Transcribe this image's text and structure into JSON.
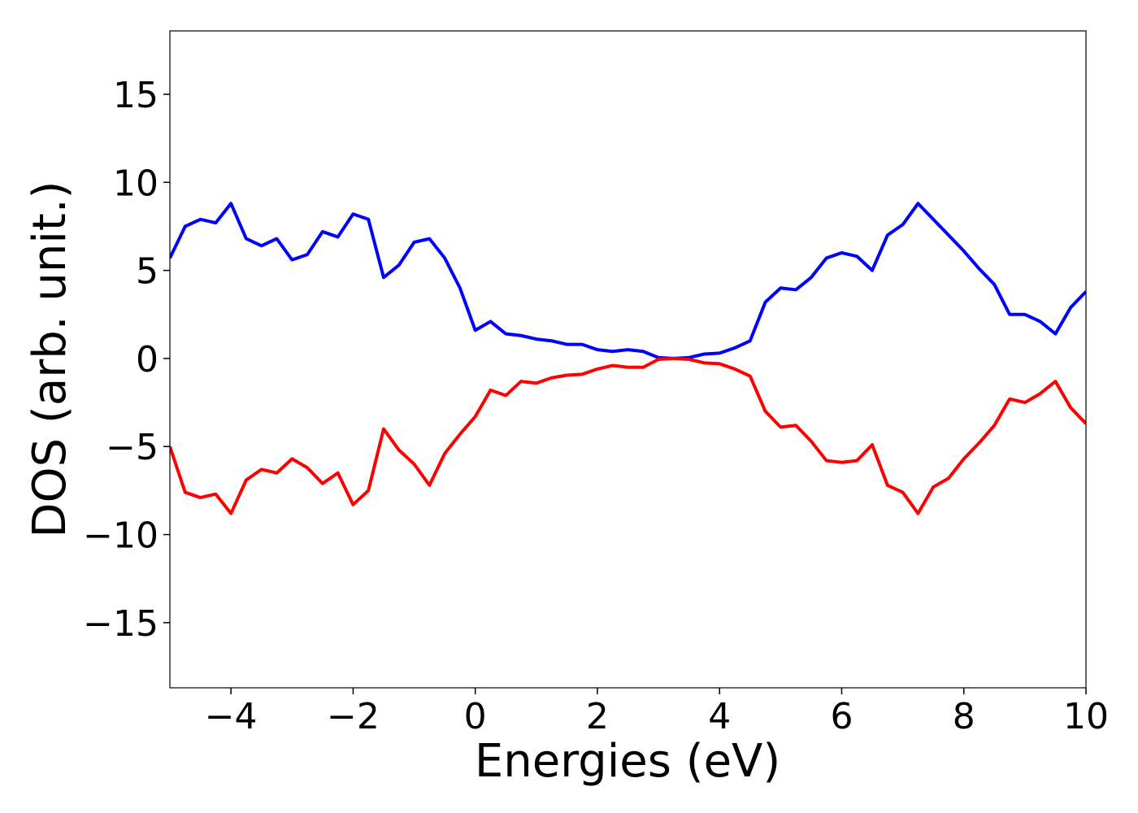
{
  "chart_data": {
    "type": "line",
    "xlabel": "Energies (eV)",
    "ylabel": "DOS (arb. unit.)",
    "x": [
      -5,
      -4.75,
      -4.5,
      -4.25,
      -4,
      -3.75,
      -3.5,
      -3.25,
      -3,
      -2.75,
      -2.5,
      -2.25,
      -2,
      -1.75,
      -1.5,
      -1.25,
      -1,
      -0.75,
      -0.5,
      -0.25,
      0,
      0.25,
      0.5,
      0.75,
      1,
      1.25,
      1.5,
      1.75,
      2,
      2.25,
      2.5,
      2.75,
      3,
      3.25,
      3.5,
      3.75,
      4,
      4.25,
      4.5,
      4.75,
      5,
      5.25,
      5.5,
      5.75,
      6,
      6.25,
      6.5,
      6.75,
      7,
      7.25,
      7.5,
      7.75,
      8,
      8.25,
      8.5,
      8.75,
      9,
      9.25,
      9.5,
      9.75,
      10
    ],
    "series": [
      {
        "color": "#0000ff",
        "values": [
          5.7,
          7.5,
          7.9,
          7.7,
          8.8,
          6.8,
          6.4,
          6.8,
          5.6,
          5.9,
          7.2,
          6.9,
          8.2,
          7.9,
          4.6,
          5.3,
          6.6,
          6.8,
          5.7,
          4.0,
          1.6,
          2.1,
          1.4,
          1.3,
          1.1,
          1.0,
          0.8,
          0.8,
          0.5,
          0.4,
          0.5,
          0.4,
          0.05,
          0,
          0.05,
          0.25,
          0.3,
          0.6,
          1.0,
          3.2,
          4.0,
          3.9,
          4.6,
          5.7,
          6.0,
          5.8,
          5.0,
          7.0,
          7.6,
          8.8,
          7.9,
          7.0,
          6.1,
          5.1,
          4.2,
          2.5,
          2.5,
          2.1,
          1.4,
          2.9,
          3.8
        ]
      },
      {
        "color": "#ff0000",
        "values": [
          -5.0,
          -7.6,
          -7.9,
          -7.7,
          -8.8,
          -6.9,
          -6.3,
          -6.5,
          -5.7,
          -6.2,
          -7.1,
          -6.5,
          -8.3,
          -7.5,
          -4.0,
          -5.2,
          -6.0,
          -7.2,
          -5.4,
          -4.3,
          -3.3,
          -1.8,
          -2.1,
          -1.3,
          -1.4,
          -1.1,
          -0.95,
          -0.9,
          -0.6,
          -0.4,
          -0.5,
          -0.5,
          -0.05,
          0,
          -0.05,
          -0.25,
          -0.3,
          -0.6,
          -1.0,
          -3.0,
          -3.9,
          -3.8,
          -4.7,
          -5.8,
          -5.9,
          -5.8,
          -4.9,
          -7.2,
          -7.6,
          -8.8,
          -7.3,
          -6.8,
          -5.7,
          -4.8,
          -3.8,
          -2.3,
          -2.5,
          -2.0,
          -1.3,
          -2.8,
          -3.7
        ]
      }
    ],
    "xlim": [
      -5,
      10
    ],
    "xticks": [
      {
        "value": -4,
        "label": "−4"
      },
      {
        "value": -2,
        "label": "−2"
      },
      0,
      2,
      4,
      6,
      8,
      10
    ],
    "ylim": [
      -18.7,
      18.6
    ],
    "yticks": [
      {
        "value": -15,
        "label": "−15"
      },
      {
        "value": -10,
        "label": "−10"
      },
      {
        "value": -5,
        "label": "−5"
      },
      0,
      5,
      10,
      15
    ],
    "grid": false
  }
}
